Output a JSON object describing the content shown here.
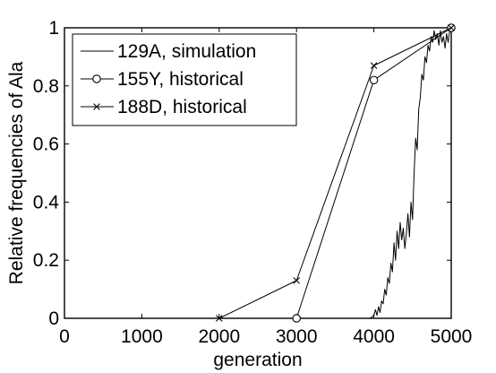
{
  "chart_data": {
    "type": "line",
    "title": "",
    "xlabel": "generation",
    "ylabel": "Relative frequencies of Ala",
    "xlim": [
      0,
      5000
    ],
    "ylim": [
      0,
      1
    ],
    "xticks": [
      0,
      1000,
      2000,
      3000,
      4000,
      5000
    ],
    "xtick_labels": [
      "0",
      "1000",
      "2000",
      "3000",
      "4000",
      "5000"
    ],
    "yticks": [
      0,
      0.2,
      0.4,
      0.6,
      0.8,
      1
    ],
    "ytick_labels": [
      "0",
      "0.2",
      "0.4",
      "0.6",
      "0.8",
      "1"
    ],
    "grid": false,
    "legend_position": "top-left",
    "series": [
      {
        "name": "129A, simulation",
        "marker": "none",
        "color": "#000000",
        "x": [
          3900,
          3950,
          4000,
          4020,
          4040,
          4060,
          4080,
          4100,
          4120,
          4140,
          4160,
          4180,
          4200,
          4220,
          4240,
          4260,
          4280,
          4300,
          4320,
          4340,
          4360,
          4380,
          4400,
          4420,
          4440,
          4460,
          4480,
          4500,
          4520,
          4540,
          4560,
          4580,
          4600,
          4620,
          4640,
          4660,
          4680,
          4700,
          4720,
          4740,
          4760,
          4780,
          4800,
          4820,
          4840,
          4860,
          4880,
          4900,
          4920,
          4940,
          4960,
          4980,
          5000
        ],
        "y": [
          0,
          0,
          0.01,
          0.03,
          0.01,
          0.04,
          0.02,
          0.06,
          0.05,
          0.1,
          0.08,
          0.14,
          0.12,
          0.19,
          0.16,
          0.26,
          0.2,
          0.3,
          0.24,
          0.33,
          0.27,
          0.31,
          0.24,
          0.29,
          0.36,
          0.28,
          0.4,
          0.34,
          0.5,
          0.62,
          0.58,
          0.72,
          0.76,
          0.84,
          0.82,
          0.9,
          0.88,
          0.94,
          0.92,
          0.97,
          0.95,
          0.99,
          0.96,
          0.98,
          0.94,
          0.99,
          0.95,
          0.97,
          0.93,
          0.98,
          0.95,
          0.99,
          1.0
        ]
      },
      {
        "name": "155Y, historical",
        "marker": "circle",
        "color": "#000000",
        "x": [
          3000,
          4000,
          5000
        ],
        "y": [
          0,
          0.82,
          1.0
        ]
      },
      {
        "name": "188D, historical",
        "marker": "x",
        "color": "#000000",
        "x": [
          2000,
          3000,
          4000,
          5000
        ],
        "y": [
          0,
          0.13,
          0.87,
          1.0
        ]
      }
    ]
  }
}
